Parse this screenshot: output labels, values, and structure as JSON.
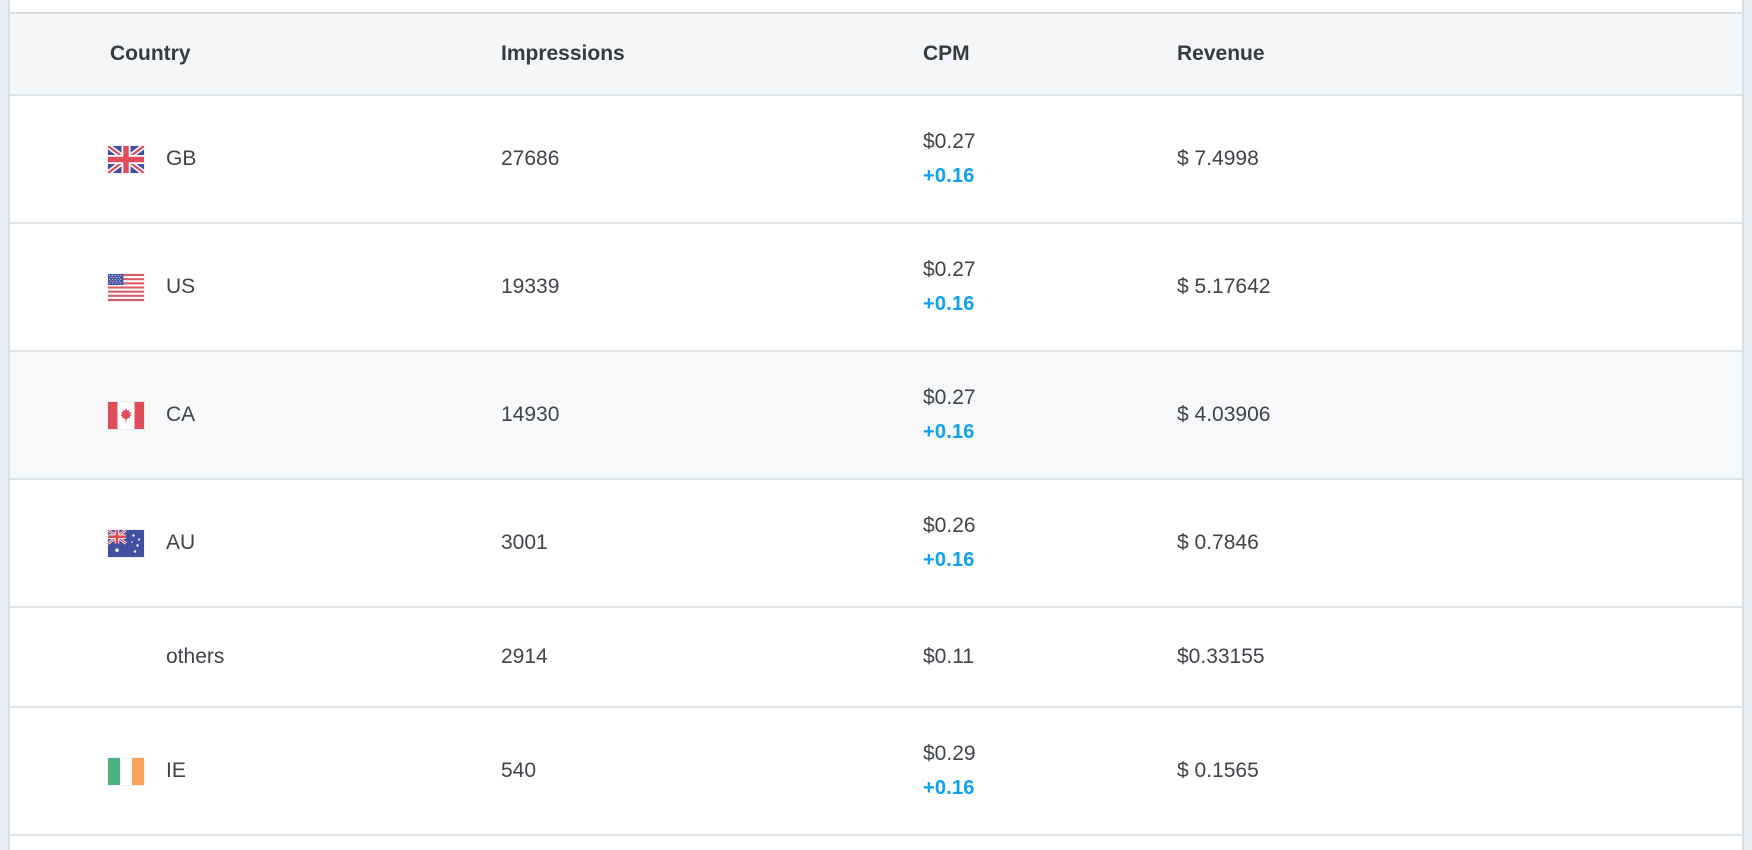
{
  "table": {
    "columns": [
      {
        "key": "country",
        "label": "Country"
      },
      {
        "key": "impressions",
        "label": "Impressions"
      },
      {
        "key": "cpm",
        "label": "CPM"
      },
      {
        "key": "revenue",
        "label": "Revenue"
      }
    ],
    "rows": [
      {
        "country": "GB",
        "flag": "gb",
        "impressions": "27686",
        "cpm": "$0.27",
        "cpm_delta": "+0.16",
        "revenue": "$ 7.4998",
        "highlighted": false
      },
      {
        "country": "US",
        "flag": "us",
        "impressions": "19339",
        "cpm": "$0.27",
        "cpm_delta": "+0.16",
        "revenue": "$ 5.17642",
        "highlighted": false
      },
      {
        "country": "CA",
        "flag": "ca",
        "impressions": "14930",
        "cpm": "$0.27",
        "cpm_delta": "+0.16",
        "revenue": "$ 4.03906",
        "highlighted": true
      },
      {
        "country": "AU",
        "flag": "au",
        "impressions": "3001",
        "cpm": "$0.26",
        "cpm_delta": "+0.16",
        "revenue": "$ 0.7846",
        "highlighted": false
      },
      {
        "country": "others",
        "flag": null,
        "impressions": "2914",
        "cpm": "$0.11",
        "cpm_delta": null,
        "revenue": "$0.33155",
        "highlighted": false
      },
      {
        "country": "IE",
        "flag": "ie",
        "impressions": "540",
        "cpm": "$0.29",
        "cpm_delta": "+0.16",
        "revenue": "$ 0.1565",
        "highlighted": false
      }
    ]
  },
  "colors": {
    "delta_blue": "#0aa2f1",
    "header_bg": "#f4f6f8",
    "row_border": "#dde4e9",
    "highlight_row_bg": "#f6f8fa",
    "text": "#3f444a",
    "page_bg": "#eaeef1"
  }
}
